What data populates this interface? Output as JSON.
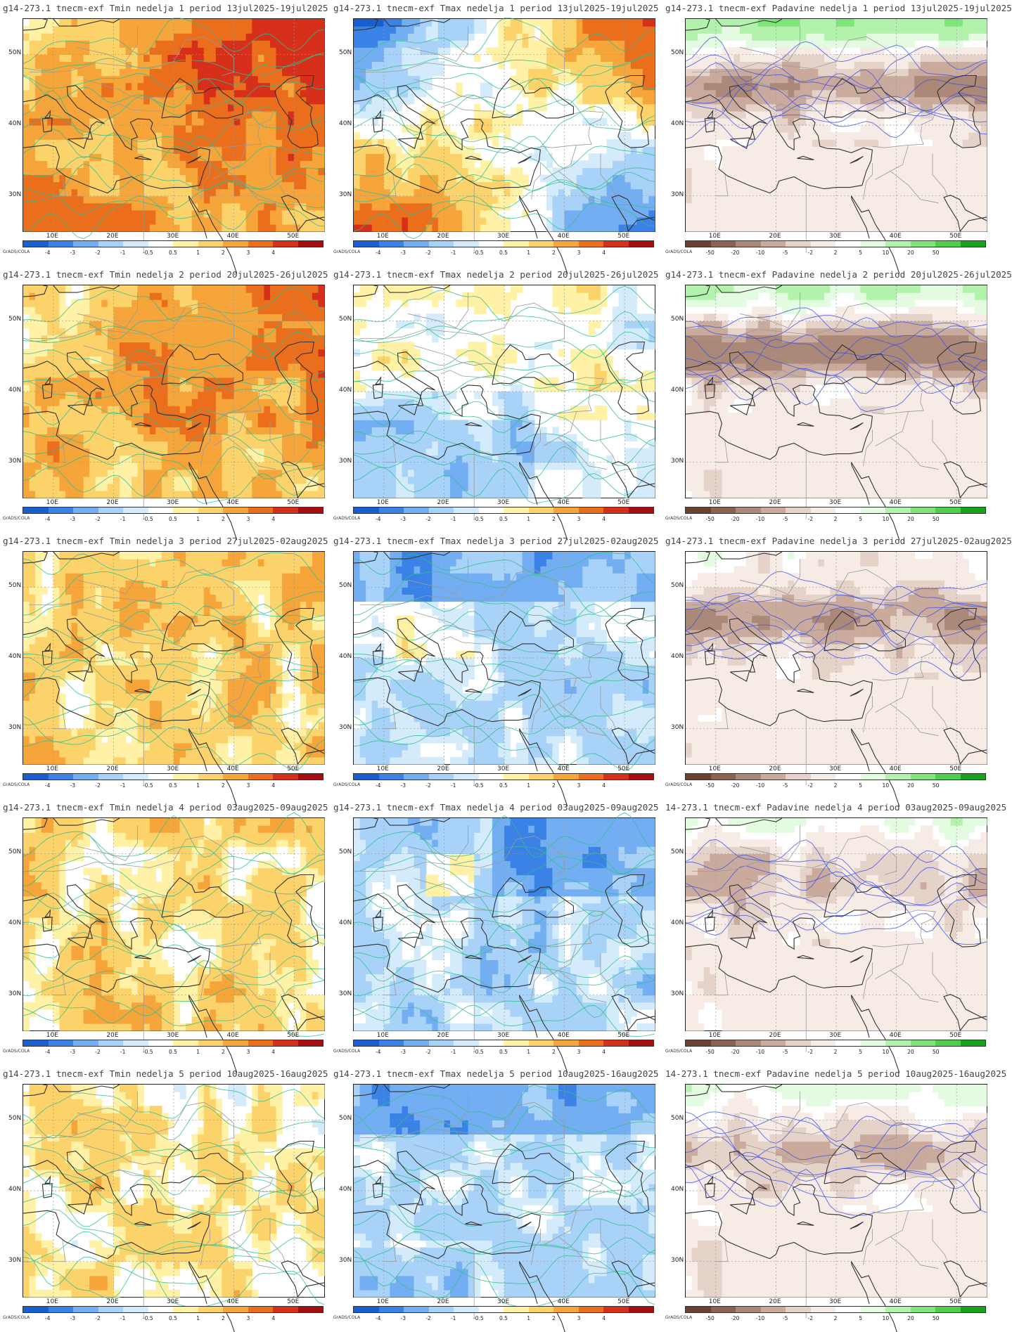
{
  "credit": "GrADS/COLA",
  "lat_labels": [
    "50N",
    "40N",
    "30N"
  ],
  "lon_labels": [
    "10E",
    "20E",
    "30E",
    "40E",
    "50E"
  ],
  "temp_scale": {
    "labels": [
      "-4",
      "-3",
      "-2",
      "-1",
      "-0.5",
      "0.5",
      "1",
      "2",
      "3",
      "4"
    ],
    "colors": [
      "#1a5fcf",
      "#3a82e6",
      "#73aef2",
      "#a8d2f7",
      "#d4ebfb",
      "#ffffff",
      "#fff1a6",
      "#fcd36b",
      "#f5a53a",
      "#ea6e1c",
      "#d6301a",
      "#a50f12"
    ]
  },
  "precip_scale": {
    "labels": [
      "-50",
      "-20",
      "-10",
      "-5",
      "-2",
      "2",
      "5",
      "10",
      "20",
      "50"
    ],
    "colors": [
      "#6b4232",
      "#8a6352",
      "#ab8878",
      "#c9aa9c",
      "#e5d2c8",
      "#f6ebe5",
      "#ffffff",
      "#e3fbe0",
      "#b3f2ac",
      "#7fe57a",
      "#4fcf4c",
      "#17a21c"
    ]
  },
  "panels": [
    {
      "title": "g14-273.1 tnecm-exf Tmin nedelja 1 period 13jul2025-19jul2025",
      "kind": "tmin",
      "week": 1
    },
    {
      "title": "g14-273.1 tnecm-exf Tmax nedelja 1 period 13jul2025-19jul2025",
      "kind": "tmax",
      "week": 1
    },
    {
      "title": "g14-273.1 tnecm-exf Padavine nedelja 1 period 13jul2025-19jul2025",
      "kind": "precip",
      "week": 1
    },
    {
      "title": "g14-273.1 tnecm-exf Tmin nedelja 2 period 20jul2025-26jul2025",
      "kind": "tmin",
      "week": 2
    },
    {
      "title": "g14-273.1 tnecm-exf Tmax nedelja 2 period 20jul2025-26jul2025",
      "kind": "tmax",
      "week": 2
    },
    {
      "title": "g14-273.1 tnecm-exf Padavine nedelja 2 period 20jul2025-26jul2025",
      "kind": "precip",
      "week": 2
    },
    {
      "title": "g14-273.1 tnecm-exf Tmin nedelja 3 period 27jul2025-02aug2025",
      "kind": "tmin",
      "week": 3
    },
    {
      "title": "g14-273.1 tnecm-exf Tmax nedelja 3 period 27jul2025-02aug2025",
      "kind": "tmax",
      "week": 3
    },
    {
      "title": "g14-273.1 tnecm-exf Padavine nedelja 3 period 27jul2025-02aug2025",
      "kind": "precip",
      "week": 3
    },
    {
      "title": "g14-273.1 tnecm-exf Tmin nedelja 4 period 03aug2025-09aug2025",
      "kind": "tmin",
      "week": 4
    },
    {
      "title": "g14-273.1 tnecm-exf Tmax nedelja 4 period 03aug2025-09aug2025",
      "kind": "tmax",
      "week": 4
    },
    {
      "title": "14-273.1 tnecm-exf Padavine nedelja 4 period 03aug2025-09aug2025",
      "kind": "precip",
      "week": 4
    },
    {
      "title": "g14-273.1 tnecm-exf Tmin nedelja 5 period 10aug2025-16aug2025",
      "kind": "tmin",
      "week": 5
    },
    {
      "title": "g14-273.1 tnecm-exf Tmax nedelja 5 period 10aug2025-16aug2025",
      "kind": "tmax",
      "week": 5
    },
    {
      "title": "14-273.1 tnecm-exf Padavine nedelja 5 period 10aug2025-16aug2025",
      "kind": "precip",
      "week": 5
    }
  ]
}
